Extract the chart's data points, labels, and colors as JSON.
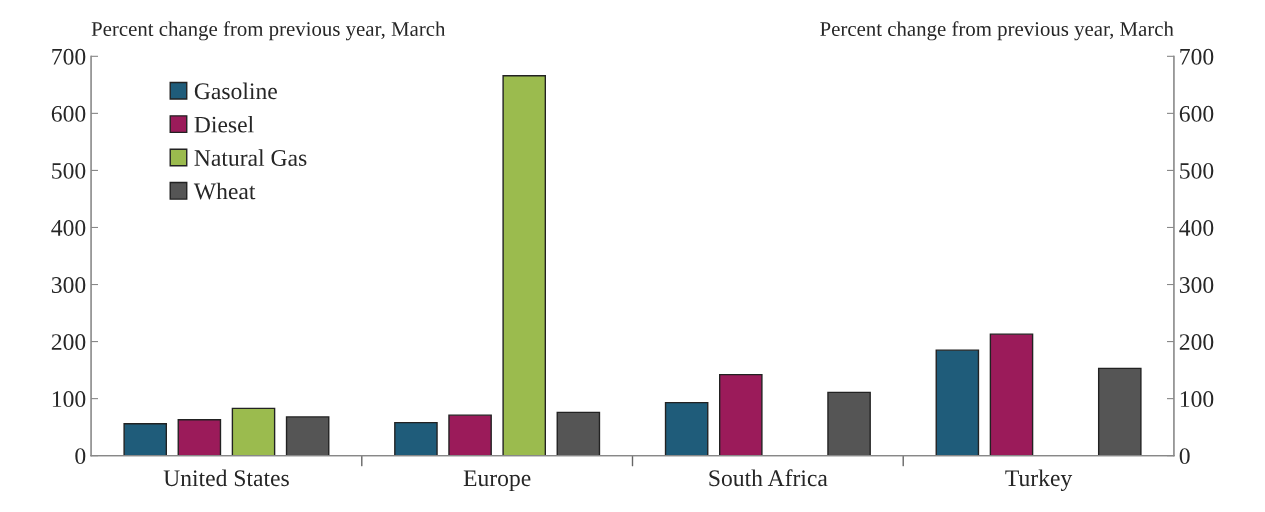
{
  "chart_data": {
    "type": "bar",
    "ylabel": "Percent change from previous year, March",
    "y2label": "Percent change from previous year, March",
    "categories": [
      "United States",
      "Europe",
      "South Africa",
      "Turkey"
    ],
    "series": [
      {
        "name": "Gasoline",
        "color": "#1f5c7a",
        "values": [
          56,
          58,
          93,
          185
        ]
      },
      {
        "name": "Diesel",
        "color": "#9b1b5a",
        "values": [
          63,
          71,
          142,
          213
        ]
      },
      {
        "name": "Natural Gas",
        "color": "#9bbb4e",
        "values": [
          83,
          666,
          null,
          null
        ]
      },
      {
        "name": "Wheat",
        "color": "#555555",
        "values": [
          68,
          76,
          111,
          153
        ]
      }
    ],
    "ylim": [
      0,
      700
    ],
    "yticks": [
      0,
      100,
      200,
      300,
      400,
      500,
      600,
      700
    ],
    "y2lim": [
      0,
      700
    ],
    "y2ticks": [
      0,
      100,
      200,
      300,
      400,
      500,
      600,
      700
    ],
    "grid": false,
    "legend": "top left"
  }
}
